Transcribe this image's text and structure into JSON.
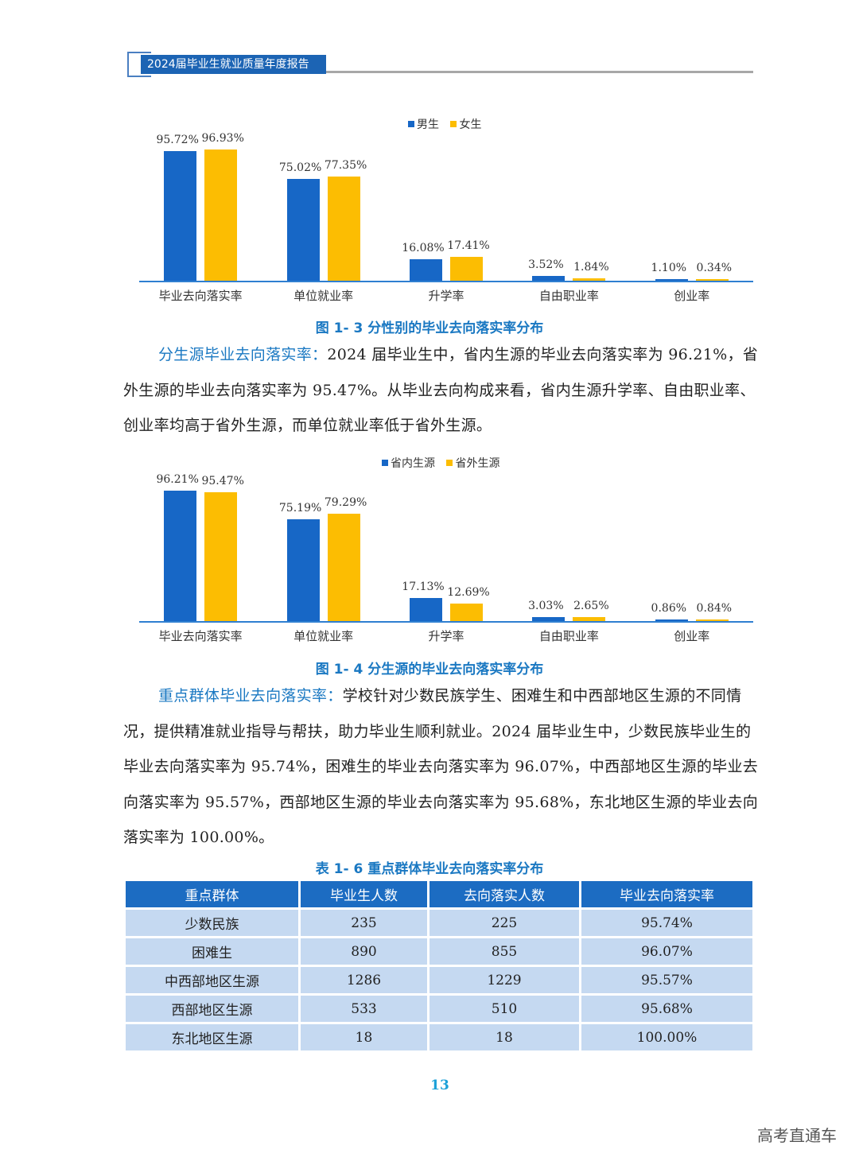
{
  "header": {
    "title": "2024届毕业生就业质量年度报告"
  },
  "figure_1_3": {
    "caption": "图 1- 3  分性别的毕业去向落实率分布",
    "legend": [
      "男生",
      "女生"
    ],
    "categories": [
      "毕业去向落实率",
      "单位就业率",
      "升学率",
      "自由职业率",
      "创业率"
    ],
    "labels_a": [
      "95.72%",
      "75.02%",
      "16.08%",
      "3.52%",
      "1.10%"
    ],
    "labels_b": [
      "96.93%",
      "77.35%",
      "17.41%",
      "1.84%",
      "0.34%"
    ]
  },
  "section_source": {
    "lead": "分生源毕业去向落实率：",
    "body": "2024 届毕业生中，省内生源的毕业去向落实率为 96.21%，省外生源的毕业去向落实率为 95.47%。从毕业去向构成来看，省内生源升学率、自由职业率、创业率均高于省外生源，而单位就业率低于省外生源。"
  },
  "figure_1_4": {
    "caption": "图 1- 4  分生源的毕业去向落实率分布",
    "legend": [
      "省内生源",
      "省外生源"
    ],
    "categories": [
      "毕业去向落实率",
      "单位就业率",
      "升学率",
      "自由职业率",
      "创业率"
    ],
    "labels_a": [
      "96.21%",
      "75.19%",
      "17.13%",
      "3.03%",
      "0.86%"
    ],
    "labels_b": [
      "95.47%",
      "79.29%",
      "12.69%",
      "2.65%",
      "0.84%"
    ]
  },
  "section_groups": {
    "lead": "重点群体毕业去向落实率：",
    "body": "学校针对少数民族学生、困难生和中西部地区生源的不同情况，提供精准就业指导与帮扶，助力毕业生顺利就业。2024 届毕业生中，少数民族毕业生的毕业去向落实率为 95.74%，困难生的毕业去向落实率为 96.07%，中西部地区生源的毕业去向落实率为 95.57%，西部地区生源的毕业去向落实率为 95.68%，东北地区生源的毕业去向落实率为 100.00%。"
  },
  "table_1_6": {
    "caption": "表 1- 6  重点群体毕业去向落实率分布",
    "headers": [
      "重点群体",
      "毕业生人数",
      "去向落实人数",
      "毕业去向落实率"
    ],
    "rows": [
      [
        "少数民族",
        "235",
        "225",
        "95.74%"
      ],
      [
        "困难生",
        "890",
        "855",
        "96.07%"
      ],
      [
        "中西部地区生源",
        "1286",
        "1229",
        "95.57%"
      ],
      [
        "西部地区生源",
        "533",
        "510",
        "95.68%"
      ],
      [
        "东北地区生源",
        "18",
        "18",
        "100.00%"
      ]
    ]
  },
  "footer": {
    "page_number": "13",
    "watermark": "高考直通车"
  },
  "colors": {
    "series_a": "#1767c6",
    "series_b": "#fcbd02",
    "accent": "#1a78c2",
    "table_header": "#1c6cc2",
    "table_cell": "#c5d9f1"
  },
  "chart_data": [
    {
      "type": "bar",
      "title": "图 1- 3  分性别的毕业去向落实率分布",
      "categories": [
        "毕业去向落实率",
        "单位就业率",
        "升学率",
        "自由职业率",
        "创业率"
      ],
      "series": [
        {
          "name": "男生",
          "values": [
            95.72,
            75.02,
            16.08,
            3.52,
            1.1
          ]
        },
        {
          "name": "女生",
          "values": [
            96.93,
            77.35,
            17.41,
            1.84,
            0.34
          ]
        }
      ],
      "xlabel": "",
      "ylabel": "",
      "ylim": [
        0,
        100
      ],
      "grid": false,
      "legend_position": "top-center"
    },
    {
      "type": "bar",
      "title": "图 1- 4  分生源的毕业去向落实率分布",
      "categories": [
        "毕业去向落实率",
        "单位就业率",
        "升学率",
        "自由职业率",
        "创业率"
      ],
      "series": [
        {
          "name": "省内生源",
          "values": [
            96.21,
            75.19,
            17.13,
            3.03,
            0.86
          ]
        },
        {
          "name": "省外生源",
          "values": [
            95.47,
            79.29,
            12.69,
            2.65,
            0.84
          ]
        }
      ],
      "xlabel": "",
      "ylabel": "",
      "ylim": [
        0,
        100
      ],
      "grid": false,
      "legend_position": "top-center"
    }
  ]
}
